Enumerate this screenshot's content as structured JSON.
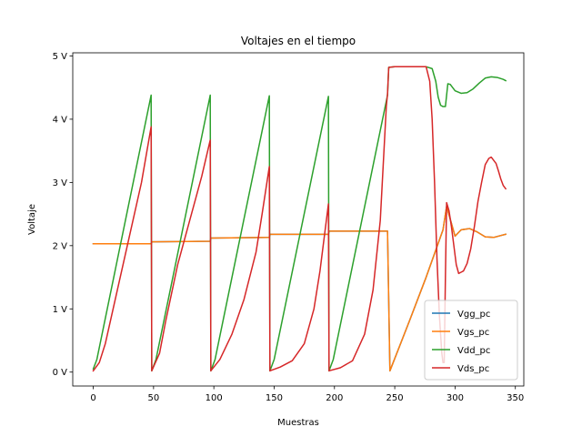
{
  "chart_data": {
    "type": "line",
    "title": "Voltajes en el tiempo",
    "xlabel": "Muestras",
    "ylabel": "Voltaje",
    "xlim": [
      -17,
      357
    ],
    "ylim": [
      -0.22,
      5.05
    ],
    "x_ticks": [
      0,
      50,
      100,
      150,
      200,
      250,
      300,
      350
    ],
    "x_tick_labels": [
      "0",
      "50",
      "100",
      "150",
      "200",
      "250",
      "300",
      "350"
    ],
    "y_ticks": [
      0,
      1,
      2,
      3,
      4,
      5
    ],
    "y_tick_labels": [
      "0 V",
      "1 V",
      "2 V",
      "3 V",
      "4 V",
      "5 V"
    ],
    "grid": false,
    "legend_position": "lower right",
    "series": [
      {
        "name": "Vgg_pc",
        "color": "#1f77b4",
        "x": [
          0,
          48,
          48.5,
          97,
          97.5,
          146,
          146.5,
          195,
          195.5,
          244,
          246,
          262,
          276,
          290,
          293,
          300,
          305,
          312,
          318,
          325,
          332,
          338,
          342
        ],
        "y": [
          2.03,
          2.03,
          2.06,
          2.07,
          2.12,
          2.13,
          2.18,
          2.18,
          2.23,
          2.23,
          0.02,
          0.8,
          1.5,
          2.25,
          2.62,
          2.15,
          2.25,
          2.27,
          2.22,
          2.14,
          2.13,
          2.16,
          2.18
        ]
      },
      {
        "name": "Vgs_pc",
        "color": "#ff7f0e",
        "x": [
          0,
          48,
          48.5,
          97,
          97.5,
          146,
          146.5,
          195,
          195.5,
          244,
          246,
          262,
          276,
          290,
          293,
          300,
          305,
          312,
          318,
          325,
          332,
          338,
          342
        ],
        "y": [
          2.03,
          2.03,
          2.06,
          2.07,
          2.12,
          2.13,
          2.18,
          2.18,
          2.23,
          2.23,
          0.02,
          0.8,
          1.5,
          2.25,
          2.62,
          2.15,
          2.25,
          2.27,
          2.22,
          2.14,
          2.13,
          2.16,
          2.18
        ]
      },
      {
        "name": "Vdd_pc",
        "color": "#2ca02c",
        "x": [
          0,
          3,
          48,
          48.5,
          52,
          97,
          97.5,
          101,
          146,
          146.5,
          150,
          195,
          195.5,
          199,
          244,
          245,
          250,
          276,
          281,
          284,
          286,
          288,
          290,
          292,
          294,
          296,
          300,
          305,
          310,
          315,
          320,
          325,
          330,
          335,
          340,
          342
        ],
        "y": [
          0.05,
          0.2,
          4.38,
          0.02,
          0.2,
          4.38,
          0.02,
          0.2,
          4.37,
          0.02,
          0.2,
          4.36,
          0.02,
          0.2,
          4.38,
          4.82,
          4.83,
          4.83,
          4.8,
          4.6,
          4.35,
          4.22,
          4.2,
          4.2,
          4.56,
          4.55,
          4.45,
          4.41,
          4.42,
          4.48,
          4.57,
          4.65,
          4.67,
          4.66,
          4.63,
          4.61
        ]
      },
      {
        "name": "Vds_pc",
        "color": "#d62728",
        "x": [
          0,
          5,
          10,
          20,
          30,
          40,
          48,
          48.5,
          55,
          60,
          70,
          80,
          90,
          97,
          97.5,
          105,
          115,
          125,
          135,
          140,
          146,
          146.5,
          155,
          165,
          175,
          183,
          188,
          195,
          195.5,
          205,
          215,
          225,
          232,
          238,
          243,
          244,
          245,
          250,
          260,
          270,
          276,
          279,
          281,
          283,
          285,
          287,
          289,
          290,
          291,
          292,
          293,
          295,
          297,
          299,
          301,
          303,
          305,
          307,
          310,
          313,
          316,
          319,
          322,
          325,
          328,
          330,
          332,
          334,
          336,
          338,
          340,
          342
        ],
        "y": [
          0.02,
          0.15,
          0.45,
          1.3,
          2.15,
          3.0,
          3.88,
          0.02,
          0.3,
          0.8,
          1.7,
          2.4,
          3.1,
          3.67,
          0.02,
          0.2,
          0.6,
          1.15,
          1.9,
          2.5,
          3.25,
          0.02,
          0.08,
          0.18,
          0.45,
          1.0,
          1.6,
          2.66,
          0.02,
          0.07,
          0.18,
          0.6,
          1.3,
          2.4,
          4.2,
          4.4,
          4.82,
          4.83,
          4.83,
          4.83,
          4.83,
          4.6,
          4.0,
          3.0,
          1.8,
          0.9,
          0.3,
          0.15,
          0.15,
          1.5,
          2.68,
          2.55,
          2.3,
          2.0,
          1.7,
          1.56,
          1.58,
          1.6,
          1.72,
          1.95,
          2.3,
          2.7,
          3.0,
          3.28,
          3.38,
          3.4,
          3.35,
          3.3,
          3.18,
          3.05,
          2.95,
          2.9
        ]
      }
    ]
  }
}
